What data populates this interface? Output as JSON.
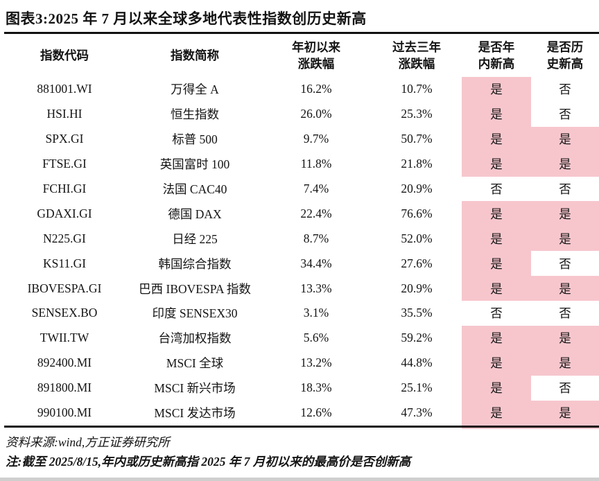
{
  "title": "图表3:2025 年 7 月以来全球多地代表性指数创历史新高",
  "table": {
    "headers": [
      {
        "lines": [
          "指数代码"
        ]
      },
      {
        "lines": [
          "指数简称"
        ]
      },
      {
        "lines": [
          "年初以来",
          "涨跌幅"
        ]
      },
      {
        "lines": [
          "过去三年",
          "涨跌幅"
        ]
      },
      {
        "lines": [
          "是否年",
          "内新高"
        ]
      },
      {
        "lines": [
          "是否历",
          "史新高"
        ]
      }
    ],
    "yes_value": "是",
    "no_value": "否",
    "highlight_color": "#f7c6cd",
    "rows": [
      {
        "code": "881001.WI",
        "name": "万得全 A",
        "ytd": "16.2%",
        "three_year": "10.7%",
        "year_high": "是",
        "record_high": "否"
      },
      {
        "code": "HSI.HI",
        "name": "恒生指数",
        "ytd": "26.0%",
        "three_year": "25.3%",
        "year_high": "是",
        "record_high": "否"
      },
      {
        "code": "SPX.GI",
        "name": "标普 500",
        "ytd": "9.7%",
        "three_year": "50.7%",
        "year_high": "是",
        "record_high": "是"
      },
      {
        "code": "FTSE.GI",
        "name": "英国富时 100",
        "ytd": "11.8%",
        "three_year": "21.8%",
        "year_high": "是",
        "record_high": "是"
      },
      {
        "code": "FCHI.GI",
        "name": "法国 CAC40",
        "ytd": "7.4%",
        "three_year": "20.9%",
        "year_high": "否",
        "record_high": "否"
      },
      {
        "code": "GDAXI.GI",
        "name": "德国 DAX",
        "ytd": "22.4%",
        "three_year": "76.6%",
        "year_high": "是",
        "record_high": "是"
      },
      {
        "code": "N225.GI",
        "name": "日经 225",
        "ytd": "8.7%",
        "three_year": "52.0%",
        "year_high": "是",
        "record_high": "是"
      },
      {
        "code": "KS11.GI",
        "name": "韩国综合指数",
        "ytd": "34.4%",
        "three_year": "27.6%",
        "year_high": "是",
        "record_high": "否"
      },
      {
        "code": "IBOVESPA.GI",
        "name": "巴西 IBOVESPA 指数",
        "ytd": "13.3%",
        "three_year": "20.9%",
        "year_high": "是",
        "record_high": "是"
      },
      {
        "code": "SENSEX.BO",
        "name": "印度 SENSEX30",
        "ytd": "3.1%",
        "three_year": "35.5%",
        "year_high": "否",
        "record_high": "否"
      },
      {
        "code": "TWII.TW",
        "name": "台湾加权指数",
        "ytd": "5.6%",
        "three_year": "59.2%",
        "year_high": "是",
        "record_high": "是"
      },
      {
        "code": "892400.MI",
        "name": "MSCI 全球",
        "ytd": "13.2%",
        "three_year": "44.8%",
        "year_high": "是",
        "record_high": "是"
      },
      {
        "code": "891800.MI",
        "name": "MSCI 新兴市场",
        "ytd": "18.3%",
        "three_year": "25.1%",
        "year_high": "是",
        "record_high": "否"
      },
      {
        "code": "990100.MI",
        "name": "MSCI 发达市场",
        "ytd": "12.6%",
        "three_year": "47.3%",
        "year_high": "是",
        "record_high": "是"
      }
    ]
  },
  "footer": {
    "source": "资料来源:wind,方正证券研究所",
    "note": "注:截至 2025/8/15,年内或历史新高指 2025 年 7 月初以来的最高价是否创新高"
  }
}
